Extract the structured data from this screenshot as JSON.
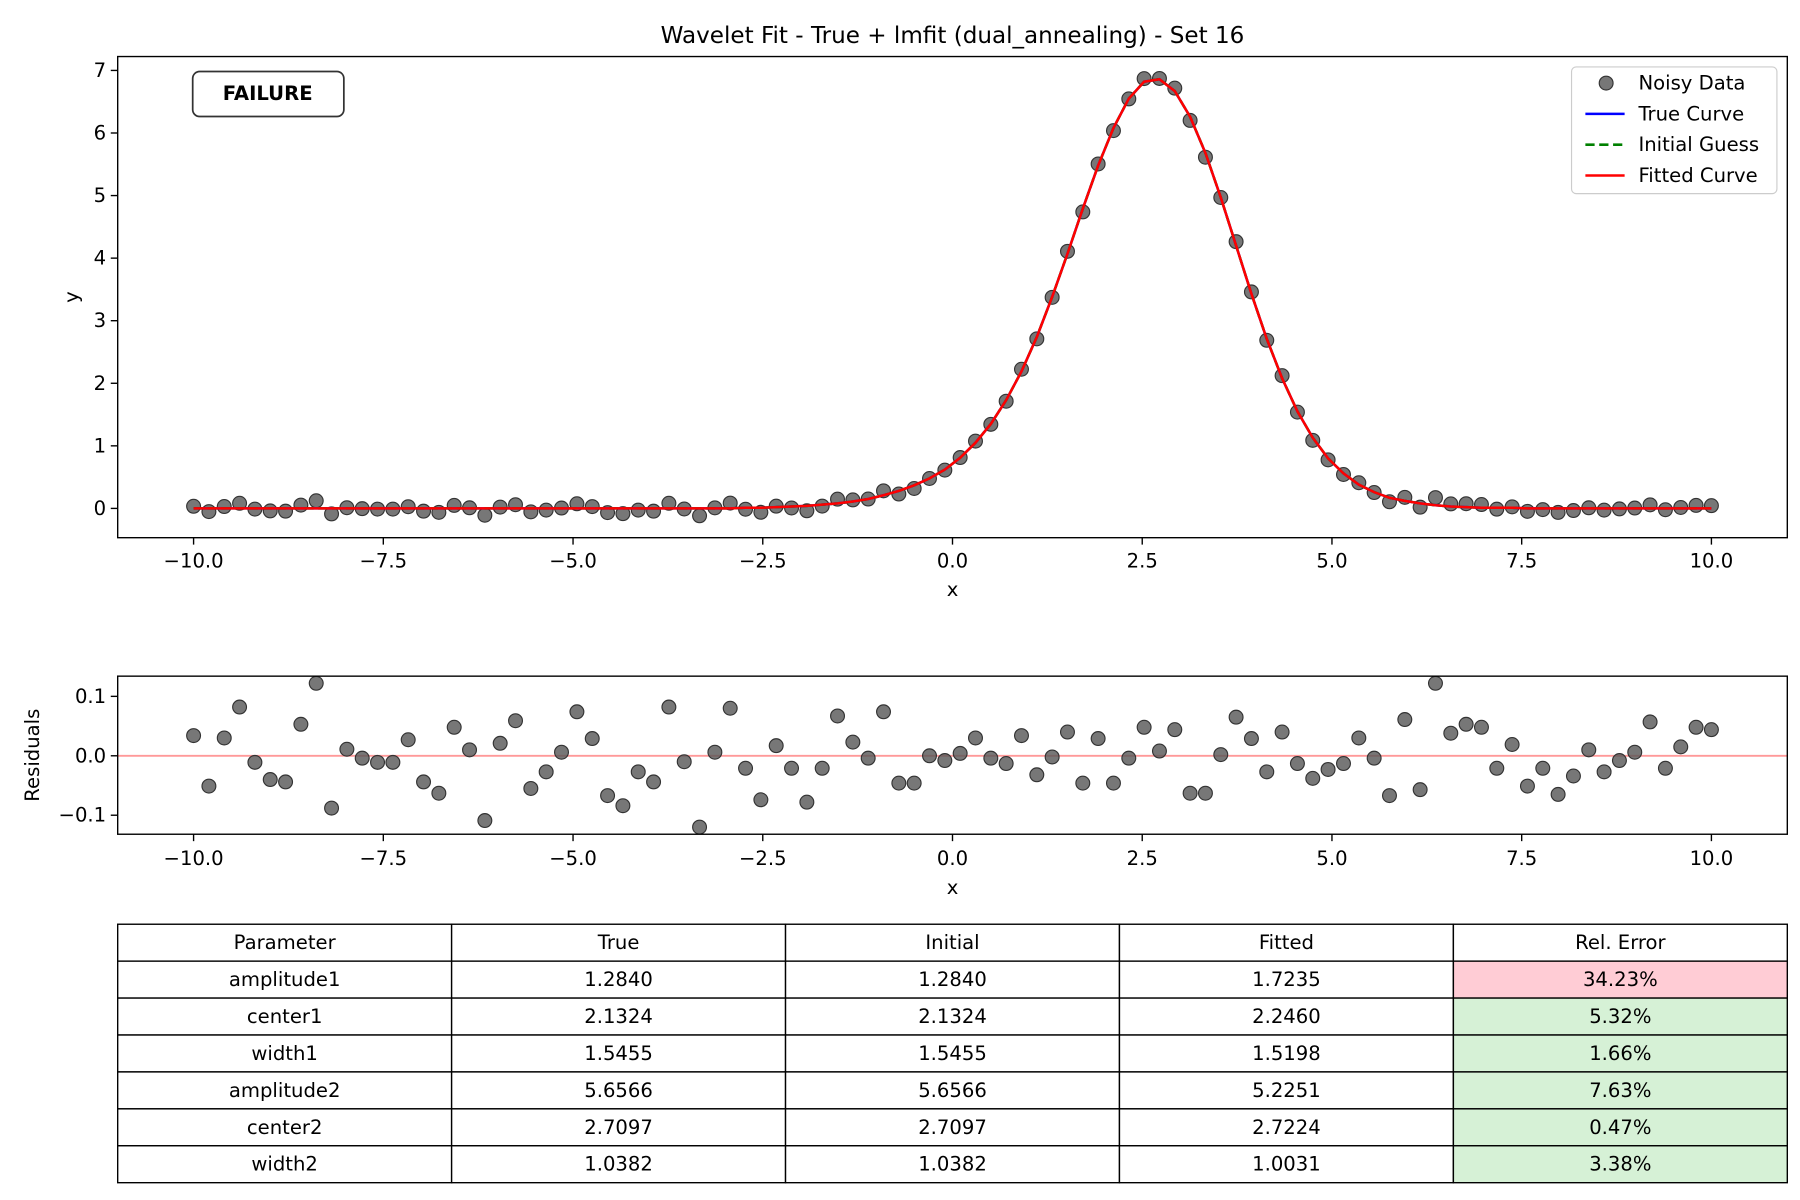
{
  "chart_data": [
    {
      "type": "line",
      "title": "Wavelet Fit - True + lmfit (dual_annealing) - Set 16",
      "xlabel": "x",
      "ylabel": "y",
      "annotation": "FAILURE",
      "annotation_color": "#ff0000",
      "legend": "upper right",
      "x": [
        -10,
        -9.798,
        -9.596,
        -9.394,
        -9.192,
        -8.99,
        -8.788,
        -8.586,
        -8.384,
        -8.182,
        -7.98,
        -7.778,
        -7.576,
        -7.374,
        -7.172,
        -6.97,
        -6.768,
        -6.566,
        -6.364,
        -6.162,
        -5.96,
        -5.758,
        -5.556,
        -5.354,
        -5.152,
        -4.949,
        -4.747,
        -4.545,
        -4.343,
        -4.141,
        -3.939,
        -3.737,
        -3.535,
        -3.333,
        -3.131,
        -2.929,
        -2.727,
        -2.525,
        -2.323,
        -2.121,
        -1.919,
        -1.717,
        -1.515,
        -1.313,
        -1.111,
        -0.909,
        -0.707,
        -0.505,
        -0.303,
        -0.101,
        0.101,
        0.303,
        0.505,
        0.707,
        0.909,
        1.111,
        1.313,
        1.515,
        1.717,
        1.919,
        2.121,
        2.323,
        2.525,
        2.727,
        2.929,
        3.131,
        3.333,
        3.535,
        3.737,
        3.939,
        4.141,
        4.343,
        4.545,
        4.747,
        4.949,
        5.152,
        5.354,
        5.556,
        5.758,
        5.96,
        6.162,
        6.364,
        6.566,
        6.768,
        6.97,
        7.172,
        7.374,
        7.576,
        7.778,
        7.98,
        8.182,
        8.384,
        8.586,
        8.788,
        8.99,
        9.192,
        9.394,
        9.596,
        9.798,
        10
      ],
      "series": [
        {
          "name": "Noisy Data",
          "type": "scatter",
          "color": "#555555",
          "values": [
            0.034,
            -0.051,
            0.03,
            0.082,
            -0.011,
            -0.04,
            -0.044,
            0.053,
            0.122,
            -0.088,
            0.011,
            -0.004,
            -0.011,
            -0.011,
            0.027,
            -0.044,
            -0.063,
            0.048,
            0.01,
            -0.109,
            0.021,
            0.059,
            -0.055,
            -0.027,
            0.006,
            0.074,
            0.029,
            -0.067,
            -0.084,
            -0.027,
            -0.044,
            0.082,
            -0.009,
            -0.118,
            0.009,
            0.085,
            -0.013,
            -0.062,
            0.036,
            0.007,
            -0.038,
            0.037,
            0.148,
            0.136,
            0.15,
            0.281,
            0.23,
            0.319,
            0.478,
            0.612,
            0.813,
            1.076,
            1.344,
            1.713,
            2.224,
            2.71,
            3.373,
            4.109,
            4.739,
            5.505,
            6.038,
            6.545,
            6.869,
            6.872,
            6.717,
            6.201,
            5.613,
            4.969,
            4.263,
            3.46,
            2.687,
            2.122,
            1.539,
            1.088,
            0.776,
            0.542,
            0.41,
            0.254,
            0.106,
            0.177,
            0.02,
            0.173,
            0.072,
            0.075,
            0.062,
            -0.012,
            0.025,
            -0.047,
            -0.019,
            -0.064,
            -0.034,
            0.01,
            -0.027,
            -0.008,
            0.006,
            0.057,
            -0.021,
            0.015,
            0.048,
            0.044
          ]
        },
        {
          "name": "True Curve",
          "type": "line",
          "color": "#0000ff",
          "values": [
            0,
            0,
            0,
            0,
            0,
            0,
            0,
            0,
            0,
            0,
            0,
            0,
            0,
            0,
            0,
            0,
            0,
            0,
            0,
            0,
            0,
            0,
            0,
            0,
            0,
            0,
            0,
            0,
            0,
            0,
            0,
            0,
            0,
            0,
            0,
            0,
            0.01,
            0.01,
            0.02,
            0.03,
            0.04,
            0.06,
            0.08,
            0.11,
            0.15,
            0.21,
            0.28,
            0.37,
            0.48,
            0.62,
            0.81,
            1.05,
            1.35,
            1.73,
            2.19,
            2.74,
            3.38,
            4.07,
            4.79,
            5.48,
            6.08,
            6.55,
            6.82,
            6.86,
            6.67,
            6.26,
            5.68,
            4.97,
            4.2,
            3.43,
            2.71,
            2.08,
            1.55,
            1.13,
            0.8,
            0.56,
            0.38,
            0.26,
            0.17,
            0.12,
            0.08,
            0.05,
            0.03,
            0.02,
            0.01,
            0.01,
            0.01,
            0,
            0,
            0,
            0,
            0,
            0,
            0,
            0,
            0,
            0,
            0,
            0,
            0
          ]
        },
        {
          "name": "Initial Guess",
          "type": "line",
          "linestyle": "dashed",
          "color": "#008000",
          "values": [
            0,
            0,
            0,
            0,
            0,
            0,
            0,
            0,
            0,
            0,
            0,
            0,
            0,
            0,
            0,
            0,
            0,
            0,
            0,
            0,
            0,
            0,
            0,
            0,
            0,
            0,
            0,
            0,
            0,
            0,
            0,
            0,
            0,
            0,
            0,
            0,
            0.01,
            0.01,
            0.02,
            0.03,
            0.04,
            0.06,
            0.08,
            0.11,
            0.15,
            0.21,
            0.28,
            0.37,
            0.48,
            0.62,
            0.81,
            1.05,
            1.35,
            1.73,
            2.19,
            2.74,
            3.38,
            4.07,
            4.79,
            5.48,
            6.08,
            6.55,
            6.82,
            6.86,
            6.67,
            6.26,
            5.68,
            4.97,
            4.2,
            3.43,
            2.71,
            2.08,
            1.55,
            1.13,
            0.8,
            0.56,
            0.38,
            0.26,
            0.17,
            0.12,
            0.08,
            0.05,
            0.03,
            0.02,
            0.01,
            0.01,
            0.01,
            0,
            0,
            0,
            0,
            0,
            0,
            0,
            0,
            0,
            0,
            0,
            0,
            0
          ]
        },
        {
          "name": "Fitted Curve",
          "type": "line",
          "color": "#ff0000",
          "values": [
            0,
            0,
            0,
            0,
            0,
            0,
            0,
            0,
            0,
            0,
            0,
            0,
            0,
            0,
            0,
            0,
            0,
            0,
            0,
            0,
            0,
            0,
            0,
            0,
            0,
            0,
            0,
            0,
            0,
            0,
            0,
            0,
            0,
            0,
            0,
            0,
            0.01,
            0.01,
            0.02,
            0.03,
            0.04,
            0.06,
            0.08,
            0.11,
            0.15,
            0.21,
            0.28,
            0.37,
            0.48,
            0.62,
            0.81,
            1.05,
            1.35,
            1.73,
            2.19,
            2.74,
            3.38,
            4.07,
            4.79,
            5.48,
            6.08,
            6.55,
            6.82,
            6.86,
            6.67,
            6.26,
            5.68,
            4.97,
            4.2,
            3.43,
            2.71,
            2.08,
            1.55,
            1.13,
            0.8,
            0.56,
            0.38,
            0.26,
            0.17,
            0.12,
            0.08,
            0.05,
            0.03,
            0.02,
            0.01,
            0.01,
            0.01,
            0,
            0,
            0,
            0,
            0,
            0,
            0,
            0,
            0,
            0,
            0,
            0,
            0
          ]
        }
      ],
      "xlim": [
        -11,
        11
      ],
      "xticks": [
        {
          "value": -10,
          "label": "−10.0"
        },
        {
          "value": -7.5,
          "label": "−7.5"
        },
        {
          "value": -5,
          "label": "−5.0"
        },
        {
          "value": -2.5,
          "label": "−2.5"
        },
        {
          "value": 0,
          "label": "0.0"
        },
        2.5,
        {
          "value": 5,
          "label": "5.0"
        },
        7.5,
        {
          "value": 10,
          "label": "10.0"
        }
      ],
      "ylim": [
        -0.468,
        7.222
      ],
      "yticks": [
        0,
        1,
        2,
        3,
        4,
        5,
        6,
        7
      ]
    },
    {
      "type": "scatter",
      "xlabel": "x",
      "ylabel": "Residuals",
      "x": [
        -10,
        -9.798,
        -9.596,
        -9.394,
        -9.192,
        -8.99,
        -8.788,
        -8.586,
        -8.384,
        -8.182,
        -7.98,
        -7.778,
        -7.576,
        -7.374,
        -7.172,
        -6.97,
        -6.768,
        -6.566,
        -6.364,
        -6.162,
        -5.96,
        -5.758,
        -5.556,
        -5.354,
        -5.152,
        -4.949,
        -4.747,
        -4.545,
        -4.343,
        -4.141,
        -3.939,
        -3.737,
        -3.535,
        -3.333,
        -3.131,
        -2.929,
        -2.727,
        -2.525,
        -2.323,
        -2.121,
        -1.919,
        -1.717,
        -1.515,
        -1.313,
        -1.111,
        -0.909,
        -0.707,
        -0.505,
        -0.303,
        -0.101,
        0.101,
        0.303,
        0.505,
        0.707,
        0.909,
        1.111,
        1.313,
        1.515,
        1.717,
        1.919,
        2.121,
        2.323,
        2.525,
        2.727,
        2.929,
        3.131,
        3.333,
        3.535,
        3.737,
        3.939,
        4.141,
        4.343,
        4.545,
        4.747,
        4.949,
        5.152,
        5.354,
        5.556,
        5.758,
        5.96,
        6.162,
        6.364,
        6.566,
        6.768,
        6.97,
        7.172,
        7.374,
        7.576,
        7.778,
        7.98,
        8.182,
        8.384,
        8.586,
        8.788,
        8.99,
        9.192,
        9.394,
        9.596,
        9.798,
        10
      ],
      "series": [
        {
          "type": "scatter",
          "color": "#555555",
          "values": [
            0.034,
            -0.051,
            0.03,
            0.082,
            -0.011,
            -0.04,
            -0.044,
            0.053,
            0.122,
            -0.088,
            0.011,
            -0.004,
            -0.011,
            -0.011,
            0.027,
            -0.044,
            -0.063,
            0.048,
            0.01,
            -0.109,
            0.021,
            0.059,
            -0.055,
            -0.027,
            0.006,
            0.074,
            0.029,
            -0.067,
            -0.084,
            -0.027,
            -0.044,
            0.082,
            -0.01,
            -0.12,
            0.006,
            0.08,
            -0.021,
            -0.074,
            0.017,
            -0.021,
            -0.078,
            -0.021,
            0.067,
            0.023,
            -0.004,
            0.074,
            -0.046,
            -0.046,
            0,
            -0.008,
            0.004,
            0.03,
            -0.004,
            -0.013,
            0.034,
            -0.032,
            -0.002,
            0.04,
            -0.046,
            0.029,
            -0.046,
            -0.004,
            0.048,
            0.008,
            0.044,
            -0.063,
            -0.063,
            0.002,
            0.065,
            0.029,
            -0.027,
            0.04,
            -0.013,
            -0.038,
            -0.023,
            -0.013,
            0.03,
            -0.004,
            -0.067,
            0.061,
            -0.057,
            0.122,
            0.038,
            0.053,
            0.048,
            -0.021,
            0.019,
            -0.051,
            -0.021,
            -0.065,
            -0.034,
            0.01,
            -0.027,
            -0.008,
            0.006,
            0.057,
            -0.021,
            0.015,
            0.048,
            0.044
          ]
        }
      ],
      "reference_line": 0,
      "reference_color": "#ff9999",
      "xlim": [
        -11,
        11
      ],
      "xticks": [
        {
          "value": -10,
          "label": "−10.0"
        },
        {
          "value": -7.5,
          "label": "−7.5"
        },
        {
          "value": -5,
          "label": "−5.0"
        },
        {
          "value": -2.5,
          "label": "−2.5"
        },
        {
          "value": 0,
          "label": "0.0"
        },
        2.5,
        {
          "value": 5,
          "label": "5.0"
        },
        7.5,
        {
          "value": 10,
          "label": "10.0"
        }
      ],
      "ylim": [
        -0.132,
        0.134
      ],
      "yticks": [
        {
          "value": -0.1,
          "label": "−0.1"
        },
        {
          "value": 0,
          "label": "0.0"
        },
        0.1
      ]
    }
  ],
  "table": {
    "header": [
      "Parameter",
      "True",
      "Initial",
      "Fitted",
      "Rel. Error"
    ],
    "rows": [
      [
        "amplitude1",
        "1.2840",
        "1.2840",
        "1.7235",
        "34.23%"
      ],
      [
        "center1",
        "2.1324",
        "2.1324",
        "2.2460",
        "5.32%"
      ],
      [
        "width1",
        "1.5455",
        "1.5455",
        "1.5198",
        "1.66%"
      ],
      [
        "amplitude2",
        "5.6566",
        "5.6566",
        "5.2251",
        "7.63%"
      ],
      [
        "center2",
        "2.7097",
        "2.7097",
        "2.7224",
        "0.47%"
      ],
      [
        "width2",
        "1.0382",
        "1.0382",
        "1.0031",
        "3.38%"
      ]
    ],
    "error_colors": [
      "#ffccd5",
      "#d6f1d6",
      "#d6f1d6",
      "#d6f1d6",
      "#d6f1d6",
      "#d6f1d6"
    ]
  }
}
